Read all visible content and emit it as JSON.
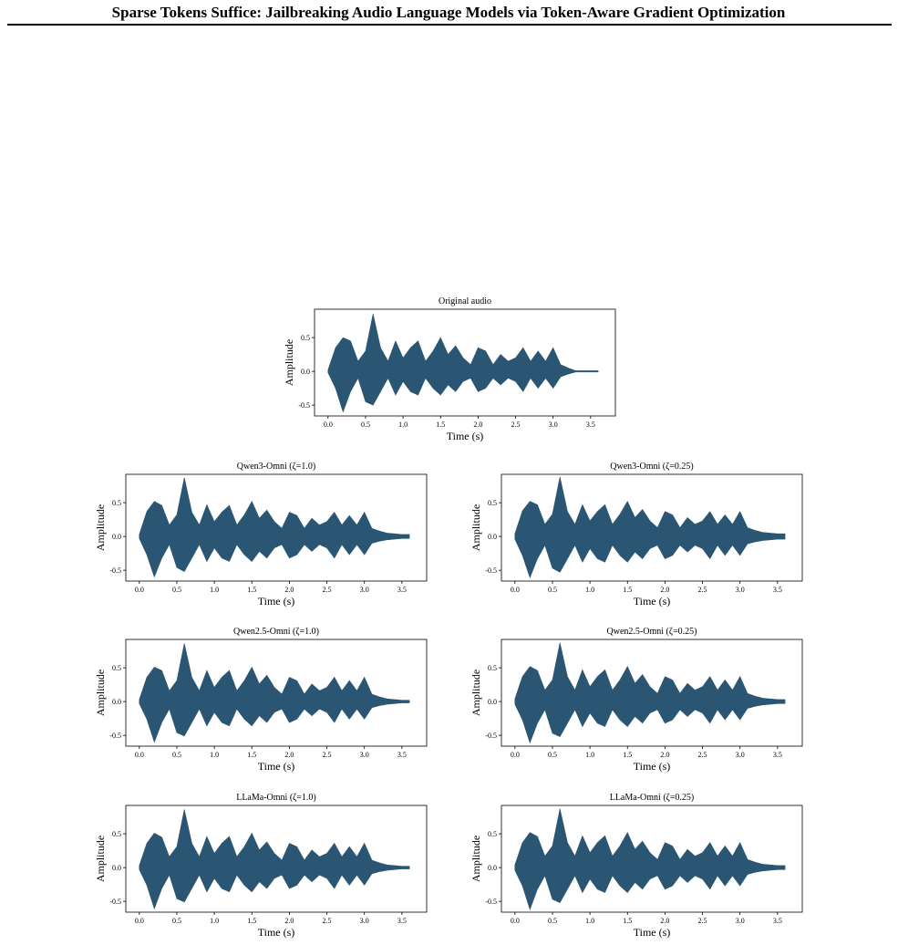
{
  "header": {
    "title": "Sparse Tokens Suffice: Jailbreaking Audio Language Models via Token-Aware Gradient Optimization"
  },
  "chart_data": [
    {
      "type": "area",
      "title": "Original audio",
      "xlabel": "Time (s)",
      "ylabel": "Amplitude",
      "color": "#2b5673",
      "x": [
        0,
        0.1,
        0.2,
        0.3,
        0.4,
        0.5,
        0.6,
        0.7,
        0.8,
        0.9,
        1.0,
        1.1,
        1.2,
        1.3,
        1.4,
        1.5,
        1.6,
        1.7,
        1.8,
        1.9,
        2.0,
        2.1,
        2.2,
        2.3,
        2.4,
        2.5,
        2.6,
        2.7,
        2.8,
        2.9,
        3.0,
        3.1,
        3.2,
        3.3,
        3.4,
        3.5,
        3.6
      ],
      "upper": [
        0.02,
        0.35,
        0.5,
        0.45,
        0.15,
        0.3,
        0.85,
        0.35,
        0.15,
        0.45,
        0.2,
        0.35,
        0.45,
        0.15,
        0.3,
        0.5,
        0.25,
        0.38,
        0.2,
        0.1,
        0.35,
        0.3,
        0.1,
        0.25,
        0.15,
        0.2,
        0.35,
        0.15,
        0.3,
        0.15,
        0.35,
        0.1,
        0.05,
        0.01,
        0.01,
        0.01,
        0.01
      ],
      "lower": [
        -0.02,
        -0.25,
        -0.6,
        -0.3,
        -0.1,
        -0.45,
        -0.5,
        -0.3,
        -0.1,
        -0.35,
        -0.15,
        -0.3,
        -0.35,
        -0.1,
        -0.25,
        -0.35,
        -0.2,
        -0.3,
        -0.15,
        -0.1,
        -0.3,
        -0.25,
        -0.1,
        -0.2,
        -0.1,
        -0.15,
        -0.3,
        -0.1,
        -0.25,
        -0.1,
        -0.25,
        -0.08,
        -0.04,
        -0.01,
        -0.01,
        -0.01,
        -0.01
      ],
      "xlim": [
        -0.18,
        3.83
      ],
      "ylim": [
        -0.66,
        0.92
      ],
      "xticks": [
        {
          "value": 0,
          "label": "0.0"
        },
        {
          "value": 0.5,
          "label": "0.5"
        },
        {
          "value": 1,
          "label": "1.0"
        },
        {
          "value": 1.5,
          "label": "1.5"
        },
        {
          "value": 2,
          "label": "2.0"
        },
        {
          "value": 2.5,
          "label": "2.5"
        },
        {
          "value": 3,
          "label": "3.0"
        },
        {
          "value": 3.5,
          "label": "3.5"
        }
      ],
      "yticks": [
        {
          "value": -0.5,
          "label": "-0.5"
        },
        {
          "value": 0,
          "label": "0.0"
        },
        {
          "value": 0.5,
          "label": "0.5"
        }
      ]
    },
    {
      "type": "area",
      "title": "Qwen3-Omni (ζ=1.0)",
      "xlabel": "Time (s)",
      "ylabel": "Amplitude",
      "color": "#2b5673",
      "x": [
        0,
        0.1,
        0.2,
        0.3,
        0.4,
        0.5,
        0.6,
        0.7,
        0.8,
        0.9,
        1.0,
        1.1,
        1.2,
        1.3,
        1.4,
        1.5,
        1.6,
        1.7,
        1.8,
        1.9,
        2.0,
        2.1,
        2.2,
        2.3,
        2.4,
        2.5,
        2.6,
        2.7,
        2.8,
        2.9,
        3.0,
        3.1,
        3.2,
        3.3,
        3.4,
        3.5,
        3.6
      ],
      "upper": [
        0.03,
        0.37,
        0.52,
        0.46,
        0.17,
        0.32,
        0.87,
        0.36,
        0.17,
        0.47,
        0.22,
        0.36,
        0.46,
        0.17,
        0.32,
        0.52,
        0.27,
        0.39,
        0.22,
        0.12,
        0.36,
        0.31,
        0.12,
        0.27,
        0.17,
        0.22,
        0.36,
        0.17,
        0.31,
        0.17,
        0.36,
        0.12,
        0.08,
        0.05,
        0.04,
        0.03,
        0.03
      ],
      "lower": [
        -0.03,
        -0.27,
        -0.6,
        -0.32,
        -0.12,
        -0.46,
        -0.52,
        -0.32,
        -0.12,
        -0.37,
        -0.17,
        -0.32,
        -0.37,
        -0.12,
        -0.27,
        -0.37,
        -0.22,
        -0.32,
        -0.17,
        -0.12,
        -0.32,
        -0.27,
        -0.12,
        -0.22,
        -0.12,
        -0.17,
        -0.32,
        -0.12,
        -0.27,
        -0.12,
        -0.27,
        -0.1,
        -0.07,
        -0.05,
        -0.04,
        -0.03,
        -0.03
      ],
      "xlim": [
        -0.18,
        3.83
      ],
      "ylim": [
        -0.66,
        0.92
      ],
      "xticks": [
        {
          "value": 0,
          "label": "0.0"
        },
        {
          "value": 0.5,
          "label": "0.5"
        },
        {
          "value": 1,
          "label": "1.0"
        },
        {
          "value": 1.5,
          "label": "1.5"
        },
        {
          "value": 2,
          "label": "2.0"
        },
        {
          "value": 2.5,
          "label": "2.5"
        },
        {
          "value": 3,
          "label": "3.0"
        },
        {
          "value": 3.5,
          "label": "3.5"
        }
      ],
      "yticks": [
        {
          "value": -0.5,
          "label": "-0.5"
        },
        {
          "value": 0,
          "label": "0.0"
        },
        {
          "value": 0.5,
          "label": "0.5"
        }
      ]
    },
    {
      "type": "area",
      "title": "Qwen3-Omni (ζ=0.25)",
      "xlabel": "Time (s)",
      "ylabel": "Amplitude",
      "color": "#2b5673",
      "x": [
        0,
        0.1,
        0.2,
        0.3,
        0.4,
        0.5,
        0.6,
        0.7,
        0.8,
        0.9,
        1.0,
        1.1,
        1.2,
        1.3,
        1.4,
        1.5,
        1.6,
        1.7,
        1.8,
        1.9,
        2.0,
        2.1,
        2.2,
        2.3,
        2.4,
        2.5,
        2.6,
        2.7,
        2.8,
        2.9,
        3.0,
        3.1,
        3.2,
        3.3,
        3.4,
        3.5,
        3.6
      ],
      "upper": [
        0.04,
        0.38,
        0.52,
        0.47,
        0.18,
        0.33,
        0.88,
        0.37,
        0.18,
        0.47,
        0.23,
        0.37,
        0.47,
        0.18,
        0.33,
        0.52,
        0.28,
        0.4,
        0.23,
        0.13,
        0.37,
        0.32,
        0.13,
        0.28,
        0.18,
        0.23,
        0.37,
        0.18,
        0.32,
        0.18,
        0.37,
        0.13,
        0.09,
        0.06,
        0.05,
        0.04,
        0.04
      ],
      "lower": [
        -0.04,
        -0.28,
        -0.61,
        -0.33,
        -0.13,
        -0.47,
        -0.53,
        -0.33,
        -0.13,
        -0.38,
        -0.18,
        -0.33,
        -0.38,
        -0.13,
        -0.28,
        -0.38,
        -0.23,
        -0.33,
        -0.18,
        -0.13,
        -0.33,
        -0.28,
        -0.13,
        -0.23,
        -0.13,
        -0.18,
        -0.33,
        -0.13,
        -0.28,
        -0.13,
        -0.28,
        -0.11,
        -0.08,
        -0.06,
        -0.05,
        -0.04,
        -0.04
      ],
      "xlim": [
        -0.18,
        3.83
      ],
      "ylim": [
        -0.66,
        0.92
      ],
      "xticks": [
        {
          "value": 0,
          "label": "0.0"
        },
        {
          "value": 0.5,
          "label": "0.5"
        },
        {
          "value": 1,
          "label": "1.0"
        },
        {
          "value": 1.5,
          "label": "1.5"
        },
        {
          "value": 2,
          "label": "2.0"
        },
        {
          "value": 2.5,
          "label": "2.5"
        },
        {
          "value": 3,
          "label": "3.0"
        },
        {
          "value": 3.5,
          "label": "3.5"
        }
      ],
      "yticks": [
        {
          "value": -0.5,
          "label": "-0.5"
        },
        {
          "value": 0,
          "label": "0.0"
        },
        {
          "value": 0.5,
          "label": "0.5"
        }
      ]
    },
    {
      "type": "area",
      "title": "Qwen2.5-Omni (ζ=1.0)",
      "xlabel": "Time (s)",
      "ylabel": "Amplitude",
      "color": "#2b5673",
      "x": [
        0,
        0.1,
        0.2,
        0.3,
        0.4,
        0.5,
        0.6,
        0.7,
        0.8,
        0.9,
        1.0,
        1.1,
        1.2,
        1.3,
        1.4,
        1.5,
        1.6,
        1.7,
        1.8,
        1.9,
        2.0,
        2.1,
        2.2,
        2.3,
        2.4,
        2.5,
        2.6,
        2.7,
        2.8,
        2.9,
        3.0,
        3.1,
        3.2,
        3.3,
        3.4,
        3.5,
        3.6
      ],
      "upper": [
        0.03,
        0.36,
        0.51,
        0.46,
        0.16,
        0.31,
        0.86,
        0.36,
        0.16,
        0.46,
        0.21,
        0.36,
        0.46,
        0.16,
        0.31,
        0.51,
        0.26,
        0.39,
        0.21,
        0.11,
        0.36,
        0.31,
        0.11,
        0.26,
        0.16,
        0.21,
        0.36,
        0.16,
        0.31,
        0.16,
        0.36,
        0.11,
        0.07,
        0.04,
        0.03,
        0.02,
        0.02
      ],
      "lower": [
        -0.03,
        -0.26,
        -0.6,
        -0.31,
        -0.11,
        -0.46,
        -0.51,
        -0.31,
        -0.11,
        -0.36,
        -0.16,
        -0.31,
        -0.36,
        -0.11,
        -0.26,
        -0.36,
        -0.21,
        -0.31,
        -0.16,
        -0.11,
        -0.31,
        -0.26,
        -0.11,
        -0.21,
        -0.11,
        -0.16,
        -0.31,
        -0.11,
        -0.26,
        -0.11,
        -0.26,
        -0.09,
        -0.06,
        -0.04,
        -0.03,
        -0.02,
        -0.02
      ],
      "xlim": [
        -0.18,
        3.83
      ],
      "ylim": [
        -0.66,
        0.92
      ],
      "xticks": [
        {
          "value": 0,
          "label": "0.0"
        },
        {
          "value": 0.5,
          "label": "0.5"
        },
        {
          "value": 1,
          "label": "1.0"
        },
        {
          "value": 1.5,
          "label": "1.5"
        },
        {
          "value": 2,
          "label": "2.0"
        },
        {
          "value": 2.5,
          "label": "2.5"
        },
        {
          "value": 3,
          "label": "3.0"
        },
        {
          "value": 3.5,
          "label": "3.5"
        }
      ],
      "yticks": [
        {
          "value": -0.5,
          "label": "-0.5"
        },
        {
          "value": 0,
          "label": "0.0"
        },
        {
          "value": 0.5,
          "label": "0.5"
        }
      ]
    },
    {
      "type": "area",
      "title": "Qwen2.5-Omni (ζ=0.25)",
      "xlabel": "Time (s)",
      "ylabel": "Amplitude",
      "color": "#2b5673",
      "x": [
        0,
        0.1,
        0.2,
        0.3,
        0.4,
        0.5,
        0.6,
        0.7,
        0.8,
        0.9,
        1.0,
        1.1,
        1.2,
        1.3,
        1.4,
        1.5,
        1.6,
        1.7,
        1.8,
        1.9,
        2.0,
        2.1,
        2.2,
        2.3,
        2.4,
        2.5,
        2.6,
        2.7,
        2.8,
        2.9,
        3.0,
        3.1,
        3.2,
        3.3,
        3.4,
        3.5,
        3.6
      ],
      "upper": [
        0.04,
        0.37,
        0.52,
        0.46,
        0.17,
        0.32,
        0.87,
        0.37,
        0.17,
        0.47,
        0.22,
        0.37,
        0.47,
        0.17,
        0.32,
        0.52,
        0.27,
        0.4,
        0.22,
        0.12,
        0.37,
        0.32,
        0.12,
        0.27,
        0.17,
        0.22,
        0.37,
        0.17,
        0.32,
        0.17,
        0.37,
        0.12,
        0.08,
        0.05,
        0.04,
        0.03,
        0.03
      ],
      "lower": [
        -0.04,
        -0.27,
        -0.61,
        -0.32,
        -0.12,
        -0.47,
        -0.52,
        -0.32,
        -0.12,
        -0.37,
        -0.17,
        -0.32,
        -0.37,
        -0.12,
        -0.27,
        -0.37,
        -0.22,
        -0.32,
        -0.17,
        -0.12,
        -0.32,
        -0.27,
        -0.12,
        -0.22,
        -0.12,
        -0.17,
        -0.32,
        -0.12,
        -0.27,
        -0.12,
        -0.27,
        -0.1,
        -0.07,
        -0.05,
        -0.04,
        -0.03,
        -0.03
      ],
      "xlim": [
        -0.18,
        3.83
      ],
      "ylim": [
        -0.66,
        0.92
      ],
      "xticks": [
        {
          "value": 0,
          "label": "0.0"
        },
        {
          "value": 0.5,
          "label": "0.5"
        },
        {
          "value": 1,
          "label": "1.0"
        },
        {
          "value": 1.5,
          "label": "1.5"
        },
        {
          "value": 2,
          "label": "2.0"
        },
        {
          "value": 2.5,
          "label": "2.5"
        },
        {
          "value": 3,
          "label": "3.0"
        },
        {
          "value": 3.5,
          "label": "3.5"
        }
      ],
      "yticks": [
        {
          "value": -0.5,
          "label": "-0.5"
        },
        {
          "value": 0,
          "label": "0.0"
        },
        {
          "value": 0.5,
          "label": "0.5"
        }
      ]
    },
    {
      "type": "area",
      "title": "LLaMa-Omni (ζ=1.0)",
      "xlabel": "Time (s)",
      "ylabel": "Amplitude",
      "color": "#2b5673",
      "x": [
        0,
        0.1,
        0.2,
        0.3,
        0.4,
        0.5,
        0.6,
        0.7,
        0.8,
        0.9,
        1.0,
        1.1,
        1.2,
        1.3,
        1.4,
        1.5,
        1.6,
        1.7,
        1.8,
        1.9,
        2.0,
        2.1,
        2.2,
        2.3,
        2.4,
        2.5,
        2.6,
        2.7,
        2.8,
        2.9,
        3.0,
        3.1,
        3.2,
        3.3,
        3.4,
        3.5,
        3.6
      ],
      "upper": [
        0.03,
        0.36,
        0.51,
        0.45,
        0.16,
        0.31,
        0.86,
        0.36,
        0.16,
        0.46,
        0.21,
        0.36,
        0.46,
        0.16,
        0.31,
        0.51,
        0.26,
        0.38,
        0.21,
        0.11,
        0.36,
        0.31,
        0.11,
        0.26,
        0.16,
        0.21,
        0.36,
        0.16,
        0.31,
        0.16,
        0.36,
        0.11,
        0.07,
        0.04,
        0.03,
        0.02,
        0.02
      ],
      "lower": [
        -0.03,
        -0.26,
        -0.61,
        -0.31,
        -0.11,
        -0.46,
        -0.51,
        -0.31,
        -0.11,
        -0.36,
        -0.16,
        -0.31,
        -0.36,
        -0.11,
        -0.26,
        -0.36,
        -0.21,
        -0.31,
        -0.16,
        -0.11,
        -0.31,
        -0.26,
        -0.11,
        -0.21,
        -0.11,
        -0.16,
        -0.31,
        -0.11,
        -0.26,
        -0.11,
        -0.26,
        -0.09,
        -0.06,
        -0.04,
        -0.03,
        -0.02,
        -0.02
      ],
      "xlim": [
        -0.18,
        3.83
      ],
      "ylim": [
        -0.66,
        0.92
      ],
      "xticks": [
        {
          "value": 0,
          "label": "0.0"
        },
        {
          "value": 0.5,
          "label": "0.5"
        },
        {
          "value": 1,
          "label": "1.0"
        },
        {
          "value": 1.5,
          "label": "1.5"
        },
        {
          "value": 2,
          "label": "2.0"
        },
        {
          "value": 2.5,
          "label": "2.5"
        },
        {
          "value": 3,
          "label": "3.0"
        },
        {
          "value": 3.5,
          "label": "3.5"
        }
      ],
      "yticks": [
        {
          "value": -0.5,
          "label": "-0.5"
        },
        {
          "value": 0,
          "label": "0.0"
        },
        {
          "value": 0.5,
          "label": "0.5"
        }
      ]
    },
    {
      "type": "area",
      "title": "LLaMa-Omni (ζ=0.25)",
      "xlabel": "Time (s)",
      "ylabel": "Amplitude",
      "color": "#2b5673",
      "x": [
        0,
        0.1,
        0.2,
        0.3,
        0.4,
        0.5,
        0.6,
        0.7,
        0.8,
        0.9,
        1.0,
        1.1,
        1.2,
        1.3,
        1.4,
        1.5,
        1.6,
        1.7,
        1.8,
        1.9,
        2.0,
        2.1,
        2.2,
        2.3,
        2.4,
        2.5,
        2.6,
        2.7,
        2.8,
        2.9,
        3.0,
        3.1,
        3.2,
        3.3,
        3.4,
        3.5,
        3.6
      ],
      "upper": [
        0.04,
        0.37,
        0.52,
        0.46,
        0.17,
        0.32,
        0.87,
        0.37,
        0.17,
        0.47,
        0.22,
        0.37,
        0.47,
        0.17,
        0.32,
        0.52,
        0.27,
        0.39,
        0.22,
        0.12,
        0.37,
        0.32,
        0.12,
        0.27,
        0.17,
        0.22,
        0.37,
        0.17,
        0.32,
        0.17,
        0.37,
        0.12,
        0.08,
        0.05,
        0.04,
        0.03,
        0.03
      ],
      "lower": [
        -0.04,
        -0.27,
        -0.62,
        -0.32,
        -0.12,
        -0.47,
        -0.52,
        -0.32,
        -0.12,
        -0.37,
        -0.17,
        -0.32,
        -0.37,
        -0.12,
        -0.27,
        -0.37,
        -0.22,
        -0.32,
        -0.17,
        -0.12,
        -0.32,
        -0.27,
        -0.12,
        -0.22,
        -0.12,
        -0.17,
        -0.32,
        -0.12,
        -0.27,
        -0.12,
        -0.27,
        -0.1,
        -0.07,
        -0.05,
        -0.04,
        -0.03,
        -0.03
      ],
      "xlim": [
        -0.18,
        3.83
      ],
      "ylim": [
        -0.66,
        0.92
      ],
      "xticks": [
        {
          "value": 0,
          "label": "0.0"
        },
        {
          "value": 0.5,
          "label": "0.5"
        },
        {
          "value": 1,
          "label": "1.0"
        },
        {
          "value": 1.5,
          "label": "1.5"
        },
        {
          "value": 2,
          "label": "2.0"
        },
        {
          "value": 2.5,
          "label": "2.5"
        },
        {
          "value": 3,
          "label": "3.0"
        },
        {
          "value": 3.5,
          "label": "3.5"
        }
      ],
      "yticks": [
        {
          "value": -0.5,
          "label": "-0.5"
        },
        {
          "value": 0,
          "label": "0.0"
        },
        {
          "value": 0.5,
          "label": "0.5"
        }
      ]
    }
  ]
}
